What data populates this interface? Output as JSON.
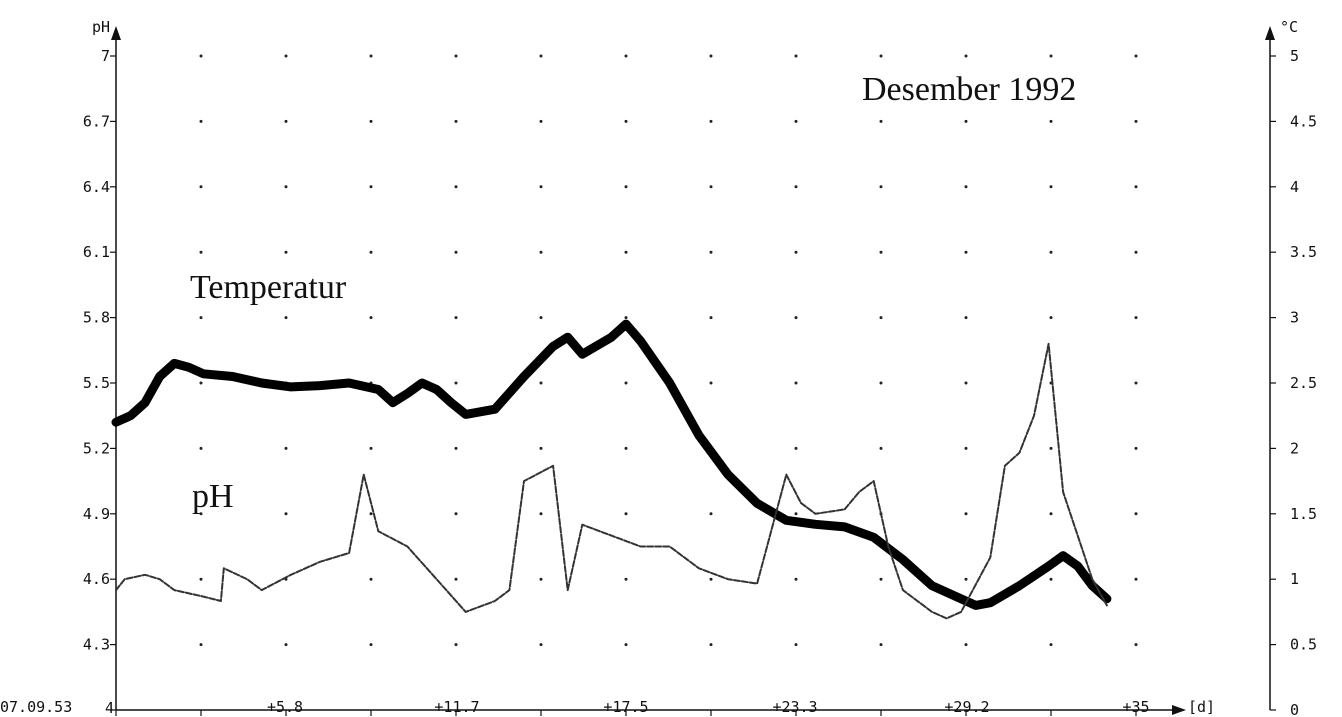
{
  "chart_data": {
    "type": "line",
    "title": "Desember 1992",
    "left_axis": {
      "label": "pH",
      "ticks": [
        "4",
        "4.3",
        "4.6",
        "4.9",
        "5.2",
        "5.5",
        "5.8",
        "6.1",
        "6.4",
        "6.7",
        "7"
      ],
      "ylim": [
        4,
        7
      ]
    },
    "right_axis": {
      "label": "°C",
      "ticks": [
        "0",
        "0.5",
        "1",
        "1.5",
        "2",
        "2.5",
        "3",
        "3.5",
        "4",
        "4.5",
        "5"
      ],
      "ylim": [
        0,
        5
      ]
    },
    "x_axis": {
      "start_label": "07.09.53",
      "tick_labels": [
        "+5.8",
        "+11.7",
        "+17.5",
        "+23.3",
        "+29.2",
        "+35"
      ],
      "unit": "[d]",
      "xlim": [
        0,
        35
      ]
    },
    "grid": "dotted",
    "series": [
      {
        "name": "Temperatur",
        "axis": "right",
        "stroke_color": "#000000",
        "x": [
          0,
          0.5,
          1,
          1.5,
          2,
          2.5,
          3,
          4,
          5,
          6,
          7,
          8,
          9,
          9.5,
          10,
          10.5,
          11,
          11.5,
          12,
          13,
          14,
          15,
          15.5,
          16,
          17,
          17.5,
          18,
          19,
          20,
          21,
          22,
          23,
          24,
          25,
          26,
          27,
          28,
          29,
          29.5,
          30,
          31,
          32,
          32.5,
          33,
          33.5,
          34
        ],
        "values": [
          2.2,
          2.25,
          2.35,
          2.55,
          2.65,
          2.62,
          2.57,
          2.55,
          2.5,
          2.47,
          2.48,
          2.5,
          2.45,
          2.35,
          2.42,
          2.5,
          2.45,
          2.35,
          2.26,
          2.3,
          2.55,
          2.78,
          2.85,
          2.72,
          2.85,
          2.95,
          2.82,
          2.5,
          2.1,
          1.8,
          1.58,
          1.45,
          1.42,
          1.4,
          1.32,
          1.15,
          0.95,
          0.85,
          0.8,
          0.82,
          0.95,
          1.1,
          1.18,
          1.1,
          0.95,
          0.85
        ]
      },
      {
        "name": "pH",
        "axis": "left",
        "stroke_color": "#333333",
        "x": [
          0,
          0.3,
          1,
          1.5,
          2,
          3,
          3.6,
          3.7,
          4.5,
          5,
          6,
          7,
          8,
          8.5,
          9,
          10,
          11,
          12,
          13,
          13.5,
          14,
          15,
          15.5,
          16,
          17,
          18,
          19,
          20,
          21,
          22,
          23,
          23.5,
          24,
          25,
          25.5,
          26,
          26.5,
          27,
          28,
          28.5,
          29,
          30,
          30.5,
          31,
          31.5,
          32,
          32.5,
          33,
          33.5,
          34
        ],
        "values": [
          4.55,
          4.6,
          4.62,
          4.6,
          4.55,
          4.52,
          4.5,
          4.65,
          4.6,
          4.55,
          4.62,
          4.68,
          4.72,
          5.08,
          4.82,
          4.75,
          4.6,
          4.45,
          4.5,
          4.55,
          5.05,
          5.12,
          4.55,
          4.85,
          4.8,
          4.75,
          4.75,
          4.65,
          4.6,
          4.58,
          5.08,
          4.95,
          4.9,
          4.92,
          5.0,
          5.05,
          4.75,
          4.55,
          4.45,
          4.42,
          4.45,
          4.7,
          5.12,
          5.18,
          5.35,
          5.68,
          5.0,
          4.8,
          4.6,
          4.48
        ]
      }
    ],
    "annotations": [
      {
        "text": "Temperatur",
        "series": "Temperatur"
      },
      {
        "text": "pH",
        "series": "pH"
      }
    ]
  }
}
